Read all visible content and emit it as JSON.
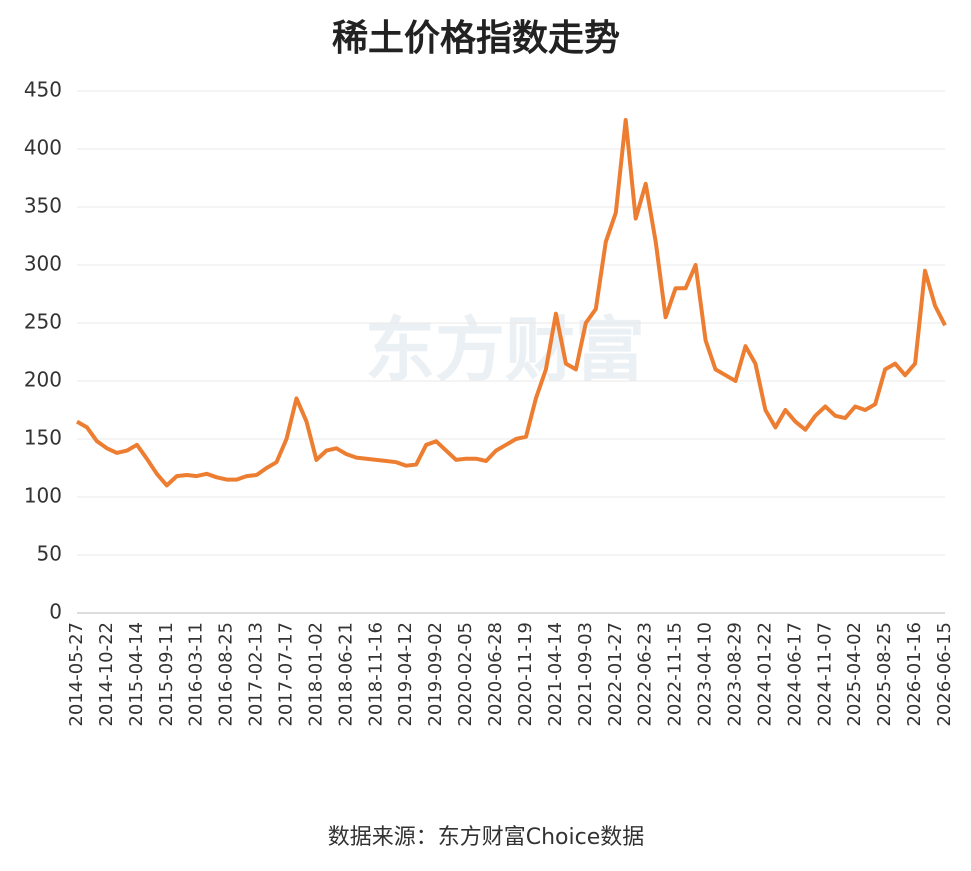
{
  "chart_data": {
    "type": "line",
    "title": "稀土价格指数走势",
    "watermark": "东方财富",
    "source": "数据来源：东方财富Choice数据",
    "categories": [
      "2014-05-27",
      null,
      null,
      "2014-10-22",
      null,
      null,
      "2015-04-14",
      null,
      null,
      "2015-09-11",
      null,
      null,
      "2016-03-11",
      null,
      null,
      "2016-08-25",
      null,
      null,
      "2017-02-13",
      null,
      null,
      "2017-07-17",
      null,
      null,
      "2018-01-02",
      null,
      null,
      "2018-06-21",
      null,
      null,
      "2018-11-16",
      null,
      null,
      "2019-04-12",
      null,
      null,
      "2019-09-02",
      null,
      null,
      "2020-02-05",
      null,
      null,
      "2020-06-28",
      null,
      null,
      "2020-11-19",
      null,
      null,
      "2021-04-14",
      null,
      null,
      "2021-09-03",
      null,
      null,
      "2022-01-27",
      null,
      null,
      "2022-06-23",
      null,
      null,
      "2022-11-15",
      null,
      null,
      "2023-04-10",
      null,
      null,
      "2023-08-29",
      null,
      null,
      "2024-01-22",
      null,
      null,
      "2024-06-17",
      null,
      null,
      "2024-11-07",
      null,
      null,
      "2025-04-02",
      null,
      null,
      "2025-08-25",
      null,
      null,
      "2026-01-16",
      null,
      null,
      "2026-06-15"
    ],
    "series": [
      {
        "name": "稀土价格指数",
        "color": "#ed7d31",
        "values": [
          165,
          160,
          148,
          142,
          138,
          140,
          145,
          133,
          120,
          110,
          118,
          119,
          118,
          120,
          117,
          115,
          115,
          118,
          119,
          125,
          130,
          150,
          185,
          165,
          132,
          140,
          142,
          137,
          134,
          133,
          132,
          131,
          130,
          127,
          128,
          145,
          148,
          140,
          132,
          133,
          133,
          131,
          140,
          145,
          150,
          152,
          185,
          210,
          258,
          215,
          210,
          250,
          262,
          320,
          345,
          425,
          340,
          370,
          320,
          255,
          280,
          280,
          300,
          235,
          210,
          205,
          200,
          230,
          215,
          175,
          160,
          175,
          165,
          158,
          170,
          178,
          170,
          168,
          178,
          175,
          180,
          210,
          215,
          205,
          215,
          295,
          265,
          248
        ]
      }
    ],
    "ylim": [
      0,
      450
    ],
    "yticks": [
      0,
      50,
      100,
      150,
      200,
      250,
      300,
      350,
      400,
      450
    ],
    "grid": true
  }
}
